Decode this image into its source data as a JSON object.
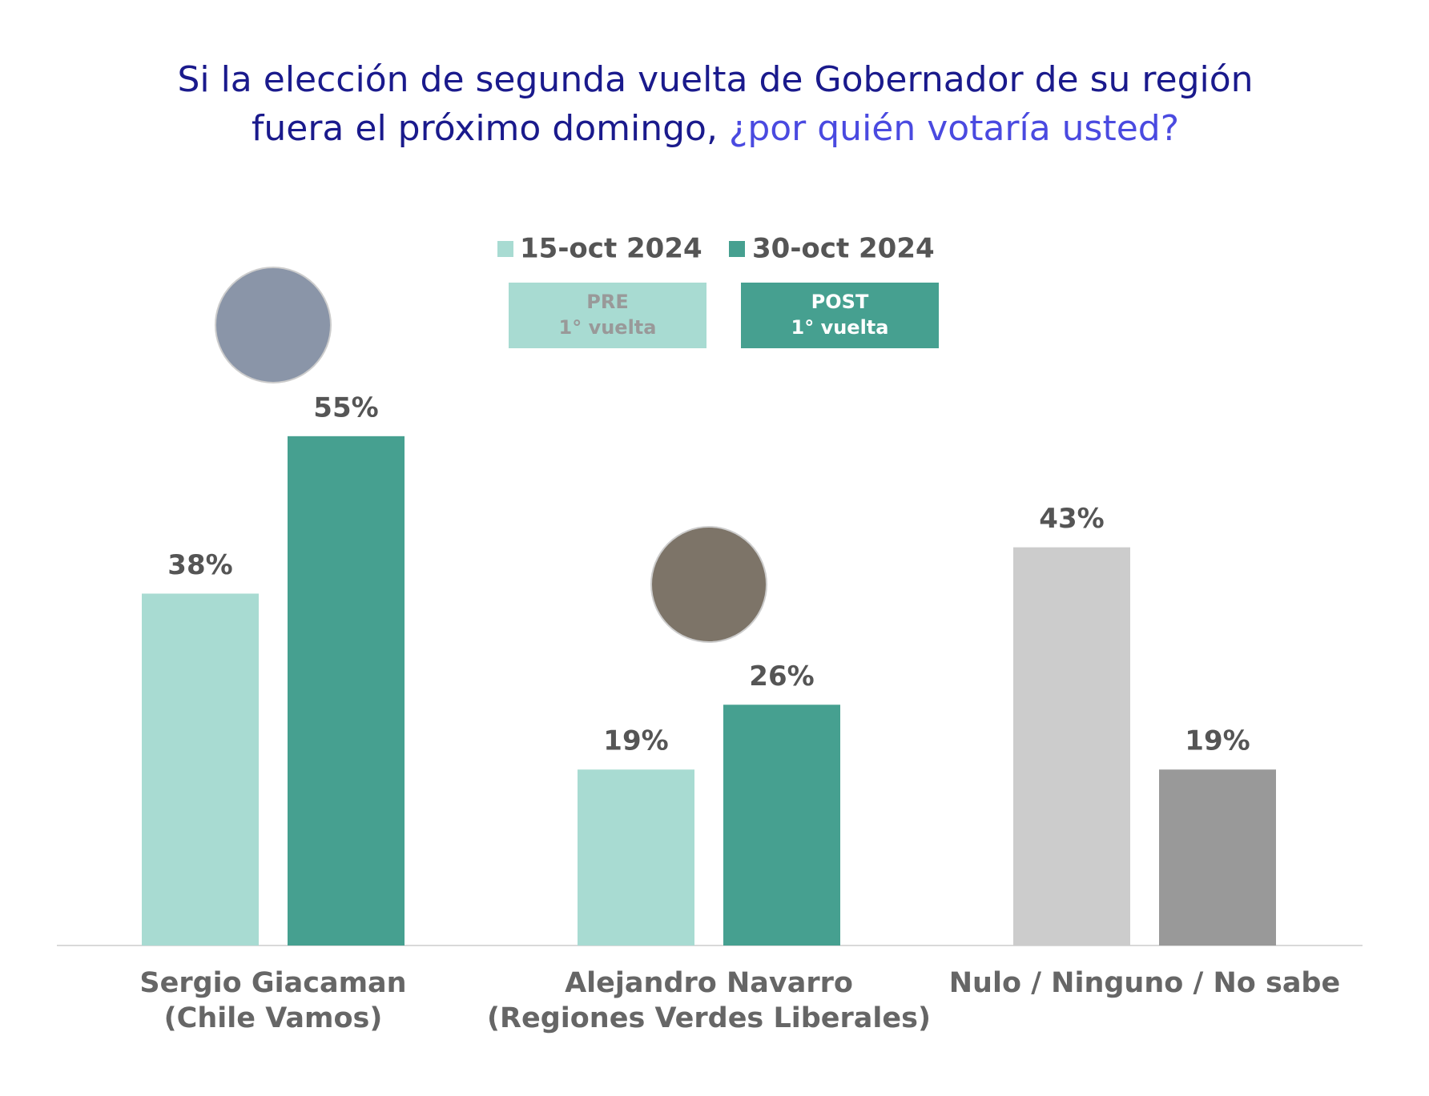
{
  "chart_data": {
    "type": "bar",
    "title": [
      "Si la elección de segunda vuelta de Gobernador de su región",
      "fuera el próximo domingo,",
      "¿por quién votaría usted?"
    ],
    "categories": [
      [
        "Sergio Giacaman",
        "(Chile Vamos)"
      ],
      [
        "Alejandro Navarro",
        "(Regiones Verdes Liberales)"
      ],
      [
        "Nulo / Ninguno / No sabe"
      ]
    ],
    "series": [
      {
        "name": "15-oct 2024",
        "badge": [
          "PRE",
          "1° vuelta"
        ],
        "color": "#a8dbd2",
        "colors": [
          "#a8dbd2",
          "#a8dbd2",
          "#cccccc"
        ],
        "values": [
          38,
          19,
          43
        ],
        "value_labels": [
          "38%",
          "19%",
          "43%"
        ]
      },
      {
        "name": "30-oct 2024",
        "badge": [
          "POST",
          "1° vuelta"
        ],
        "color": "#46a090",
        "colors": [
          "#46a090",
          "#46a090",
          "#999999"
        ],
        "values": [
          55,
          26,
          19
        ],
        "value_labels": [
          "55%",
          "26%",
          "19%"
        ]
      }
    ],
    "ylim": [
      0,
      60
    ]
  }
}
